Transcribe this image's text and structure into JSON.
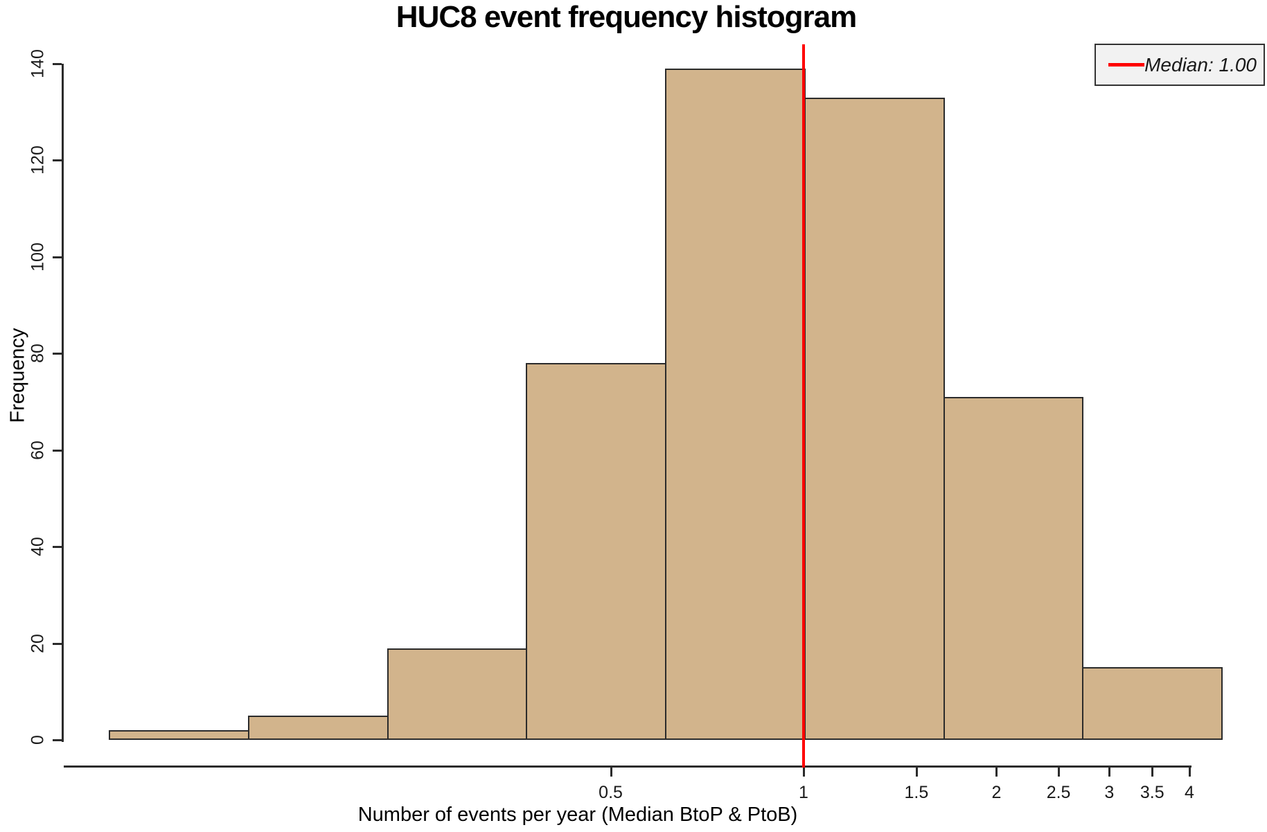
{
  "title": "HUC8 event frequency histogram",
  "legend": {
    "label": "Median: 1.00",
    "position": "top-right"
  },
  "colors": {
    "bar_fill": "#d2b48c",
    "bar_border": "#2b2b2b",
    "axis": "#2b2b2b",
    "median_line": "#ff0000",
    "text": "#1a1a1a",
    "legend_bg": "#f2f2f2",
    "legend_border": "#333333"
  },
  "chart_data": {
    "type": "bar",
    "subtype": "histogram",
    "title": "HUC8 event frequency histogram",
    "xlabel": "Number of events per year (Median BtoP & PtoB)",
    "ylabel": "Frequency",
    "values": [
      2,
      5,
      19,
      78,
      139,
      133,
      71,
      15
    ],
    "bin_edges_events_per_year": [
      0.082,
      0.135,
      0.223,
      0.368,
      0.607,
      1.0,
      1.649,
      2.718,
      4.482
    ],
    "bin_note": "equal-width bins of 0.5 in ln(events/year), from ln=-2.5 to ln=1.5",
    "x_scale": "log",
    "x_ticks": [
      0.5,
      1,
      1.5,
      2,
      2.5,
      3,
      3.5,
      4
    ],
    "y_ticks": [
      0,
      20,
      40,
      60,
      80,
      100,
      120,
      140
    ],
    "ylim": [
      0,
      140
    ],
    "median": 1.0,
    "median_line_x": 1.0,
    "grid": false,
    "legend_entries": [
      "Median: 1.00"
    ],
    "legend_position": "top-right"
  }
}
